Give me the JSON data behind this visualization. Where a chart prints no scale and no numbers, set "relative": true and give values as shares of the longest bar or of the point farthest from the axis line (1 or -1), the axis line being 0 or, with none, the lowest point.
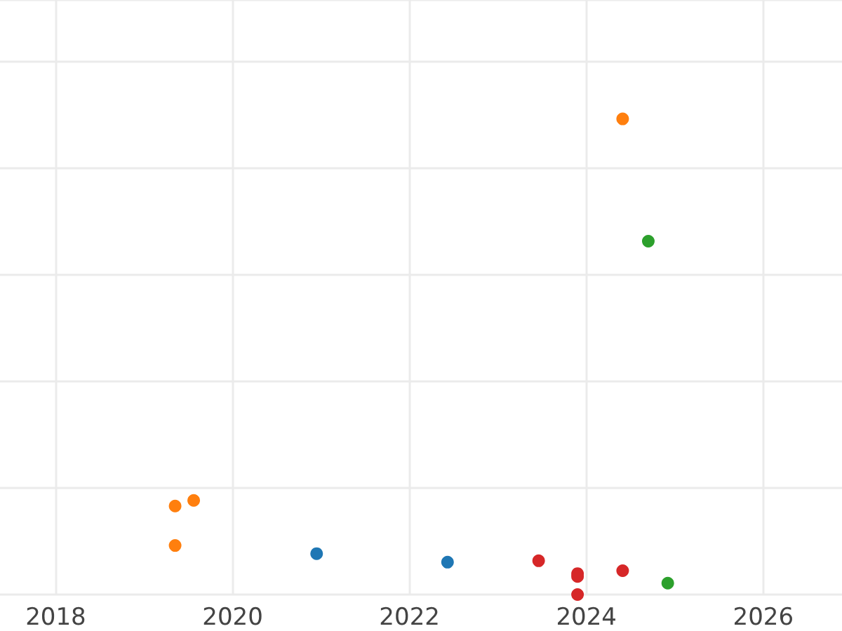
{
  "chart_data": {
    "type": "scatter",
    "relative": true,
    "grid": true,
    "xlim": [
      2017.37,
      2026.89
    ],
    "marker": "circle",
    "xticks": [
      2018,
      2020,
      2022,
      2024,
      2026
    ],
    "series": [
      {
        "color": "#1f77b4",
        "x": [
          2020.95,
          2022.43
        ],
        "values": [
          0.086,
          0.068
        ]
      },
      {
        "color": "#ff7f0e",
        "x": [
          2024.41,
          2019.35,
          2019.56,
          2019.35
        ],
        "values": [
          1,
          0.186,
          0.198,
          0.103
        ]
      },
      {
        "color": "#2ca02c",
        "x": [
          2024.7,
          2024.92
        ],
        "values": [
          0.743,
          0.024
        ]
      },
      {
        "color": "#d62728",
        "x": [
          2023.46,
          2023.9,
          2023.9,
          2024.41,
          2023.9
        ],
        "values": [
          0.071,
          0.044,
          0.038,
          0.05,
          0
        ]
      }
    ]
  }
}
